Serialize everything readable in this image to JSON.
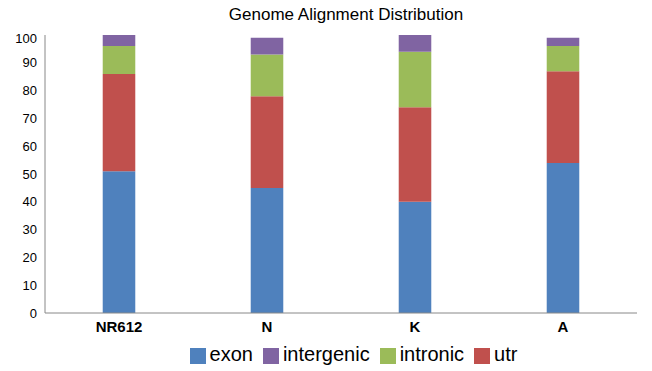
{
  "chart_data": {
    "type": "bar",
    "title": "Genome Alignment Distribution",
    "categories": [
      "NR612",
      "N",
      "K",
      "A"
    ],
    "series": [
      {
        "name": "exon",
        "color": "#4f81bd",
        "values": [
          51,
          45,
          40,
          54
        ]
      },
      {
        "name": "utr",
        "color": "#c0504d",
        "values": [
          35,
          33,
          34,
          33
        ]
      },
      {
        "name": "intronic",
        "color": "#9bbb59",
        "values": [
          10,
          15,
          20,
          9
        ]
      },
      {
        "name": "intergenic",
        "color": "#8064a2",
        "values": [
          4,
          6,
          6,
          3
        ]
      }
    ],
    "ylim": [
      0,
      100
    ],
    "yticks": [
      0,
      10,
      20,
      30,
      40,
      50,
      60,
      70,
      80,
      90,
      100
    ],
    "stacked": true,
    "grid": false,
    "legend": "bottom"
  }
}
